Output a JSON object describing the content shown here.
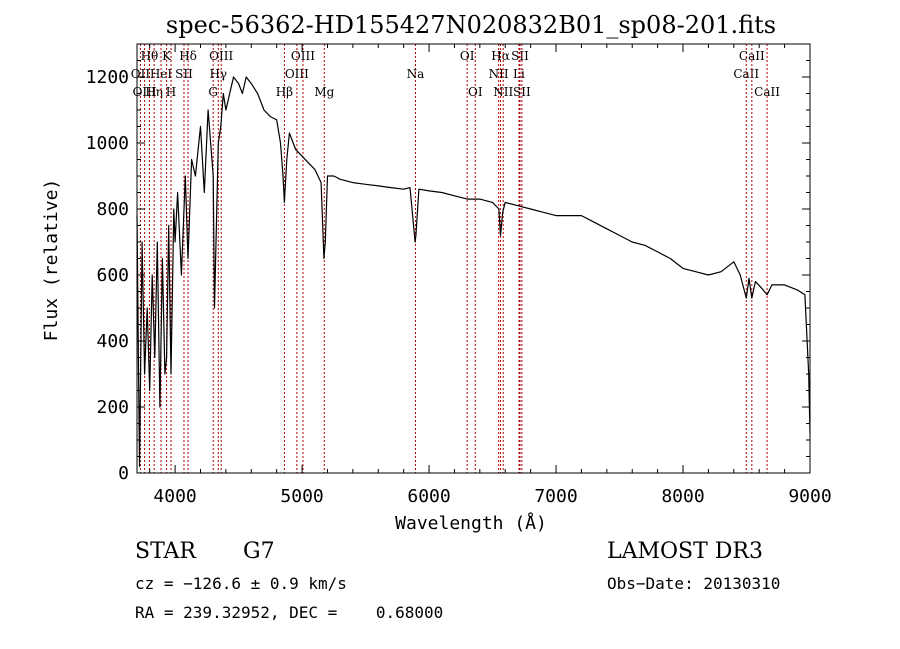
{
  "chart_data": {
    "type": "line",
    "title": "spec-56362-HD155427N020832B01_sp08-201.fits",
    "xlabel": "Wavelength (Å)",
    "ylabel": "Flux (relative)",
    "xlim": [
      3700,
      9000
    ],
    "ylim": [
      0,
      1300
    ],
    "x_ticks": [
      4000,
      5000,
      6000,
      7000,
      8000,
      9000
    ],
    "y_ticks": [
      0,
      200,
      400,
      600,
      800,
      1000,
      1200
    ],
    "grid": false,
    "series": [
      {
        "name": "flux",
        "x": [
          3700,
          3720,
          3740,
          3760,
          3780,
          3800,
          3820,
          3840,
          3860,
          3880,
          3900,
          3920,
          3933,
          3950,
          3968,
          3990,
          4000,
          4020,
          4050,
          4080,
          4102,
          4130,
          4160,
          4200,
          4230,
          4260,
          4300,
          4310,
          4340,
          4360,
          4380,
          4400,
          4430,
          4460,
          4500,
          4530,
          4560,
          4600,
          4650,
          4700,
          4750,
          4800,
          4830,
          4850,
          4861,
          4880,
          4900,
          4950,
          5000,
          5050,
          5100,
          5150,
          5167,
          5172,
          5183,
          5200,
          5250,
          5300,
          5400,
          5500,
          5600,
          5700,
          5800,
          5850,
          5890,
          5896,
          5920,
          6000,
          6100,
          6200,
          6300,
          6400,
          6500,
          6550,
          6563,
          6580,
          6600,
          6700,
          6800,
          6900,
          7000,
          7100,
          7200,
          7300,
          7400,
          7500,
          7600,
          7700,
          7800,
          7900,
          8000,
          8100,
          8200,
          8300,
          8400,
          8450,
          8498,
          8520,
          8542,
          8570,
          8620,
          8662,
          8700,
          8800,
          8900,
          8960,
          8990,
          9000
        ],
        "y": [
          780,
          20,
          700,
          300,
          500,
          250,
          600,
          350,
          700,
          200,
          650,
          300,
          350,
          750,
          300,
          800,
          700,
          850,
          600,
          900,
          650,
          950,
          900,
          1050,
          850,
          1100,
          900,
          500,
          1000,
          1050,
          1150,
          1100,
          1150,
          1200,
          1180,
          1150,
          1200,
          1180,
          1150,
          1100,
          1080,
          1070,
          1000,
          900,
          820,
          950,
          1030,
          980,
          960,
          940,
          920,
          880,
          700,
          650,
          700,
          900,
          900,
          890,
          880,
          875,
          870,
          865,
          860,
          865,
          700,
          720,
          860,
          855,
          850,
          840,
          830,
          830,
          820,
          800,
          720,
          790,
          820,
          810,
          800,
          790,
          780,
          780,
          780,
          760,
          740,
          720,
          700,
          690,
          670,
          650,
          620,
          610,
          600,
          610,
          640,
          600,
          530,
          590,
          530,
          580,
          560,
          540,
          570,
          570,
          555,
          540,
          300,
          120
        ]
      }
    ],
    "lines": [
      {
        "wl": 3727,
        "label": "OII",
        "row": 1
      },
      {
        "wl": 3760,
        "label": "OIII",
        "row": 2
      },
      {
        "wl": 3798,
        "label": "Hθ",
        "row": 0
      },
      {
        "wl": 3835,
        "label": "Hη",
        "row": 2
      },
      {
        "wl": 3889,
        "label": "HeI",
        "row": 1
      },
      {
        "wl": 3933,
        "label": "K",
        "row": 0
      },
      {
        "wl": 3968,
        "label": "H",
        "row": 2
      },
      {
        "wl": 4070,
        "label": "SII",
        "row": 1
      },
      {
        "wl": 4102,
        "label": "Hδ",
        "row": 0
      },
      {
        "wl": 4300,
        "label": "G",
        "row": 2
      },
      {
        "wl": 4340,
        "label": "Hγ",
        "row": 1
      },
      {
        "wl": 4363,
        "label": "OIII",
        "row": 0
      },
      {
        "wl": 4861,
        "label": "Hβ",
        "row": 2
      },
      {
        "wl": 4959,
        "label": "OIII",
        "row": 1
      },
      {
        "wl": 5007,
        "label": "OIII",
        "row": 0
      },
      {
        "wl": 5175,
        "label": "Mg",
        "row": 2
      },
      {
        "wl": 5893,
        "label": "Na",
        "row": 1
      },
      {
        "wl": 6300,
        "label": "OI",
        "row": 0
      },
      {
        "wl": 6364,
        "label": "OI",
        "row": 2
      },
      {
        "wl": 6548,
        "label": "NII",
        "row": 1
      },
      {
        "wl": 6563,
        "label": "Hα",
        "row": 0
      },
      {
        "wl": 6584,
        "label": "NII",
        "row": 2
      },
      {
        "wl": 6708,
        "label": "Li",
        "row": 1
      },
      {
        "wl": 6716,
        "label": "SII",
        "row": 0
      },
      {
        "wl": 6731,
        "label": "SII",
        "row": 2
      },
      {
        "wl": 8498,
        "label": "CaII",
        "row": 1
      },
      {
        "wl": 8542,
        "label": "CaII",
        "row": 0
      },
      {
        "wl": 8662,
        "label": "CaII",
        "row": 2
      }
    ]
  },
  "info": {
    "object_type": "STAR",
    "subclass": "G7",
    "survey": "LAMOST DR3",
    "cz": "cz = −126.6 ± 0.9 km/s",
    "obs_date": "Obs−Date: 20130310",
    "coords": "RA = 239.32952, DEC =    0.68000"
  },
  "colors": {
    "spectrum": "#000000",
    "line_marker": "#b30000",
    "axis": "#000000"
  }
}
